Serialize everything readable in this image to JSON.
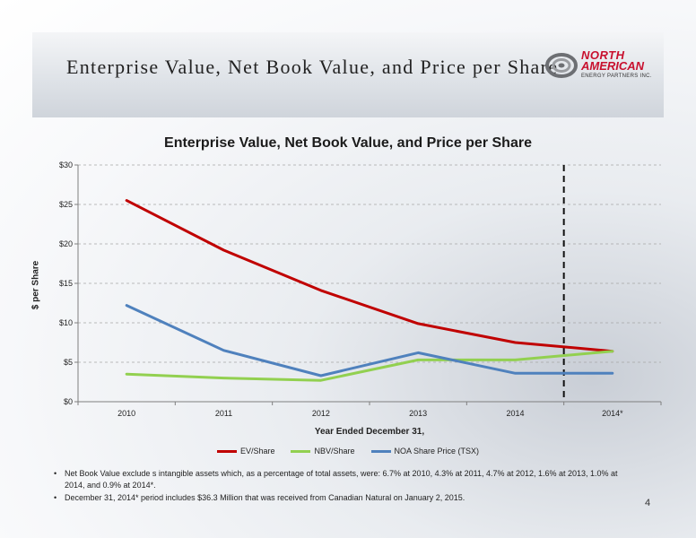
{
  "header": {
    "title": "Enterprise Value, Net Book Value, and Price per Share",
    "logo_line1": "NORTH",
    "logo_line2": "AMERICAN",
    "logo_sub": "ENERGY PARTNERS INC."
  },
  "chart_data": {
    "type": "line",
    "title": "Enterprise Value, Net Book Value, and Price per Share",
    "xlabel": "Year Ended December 31,",
    "ylabel": "$ per Share",
    "categories": [
      "2010",
      "2011",
      "2012",
      "2013",
      "2014",
      "2014*"
    ],
    "ylim": [
      0,
      30
    ],
    "yticks": [
      0,
      5,
      10,
      15,
      20,
      25,
      30
    ],
    "ytick_labels": [
      "$0",
      "$5",
      "$10",
      "$15",
      "$20",
      "$25",
      "$30"
    ],
    "grid": true,
    "legend": "bottom",
    "divider_between": [
      "2014",
      "2014*"
    ],
    "series": [
      {
        "name": "EV/Share",
        "color": "#c00000",
        "values": [
          25.5,
          19.2,
          14.1,
          9.9,
          7.5,
          6.4
        ]
      },
      {
        "name": "NBV/Share",
        "color": "#92d050",
        "values": [
          3.5,
          3.0,
          2.7,
          5.3,
          5.3,
          6.4
        ]
      },
      {
        "name": "NOA Share Price (TSX)",
        "color": "#4f81bd",
        "values": [
          12.2,
          6.5,
          3.3,
          6.2,
          3.6,
          3.6
        ]
      }
    ]
  },
  "notes": [
    "Net Book Value exclude s intangible assets  which, as a percentage of total assets, were: 6.7% at 2010, 4.3% at 2011, 4.7% at 2012, 1.6% at 2013, 1.0% at 2014, and 0.9% at 2014*.",
    "December 31, 2014* period includes $36.3 Million that was received from Canadian Natural on January 2, 2015."
  ],
  "page_number": "4",
  "colors": {
    "accent_red": "#c8102e"
  }
}
